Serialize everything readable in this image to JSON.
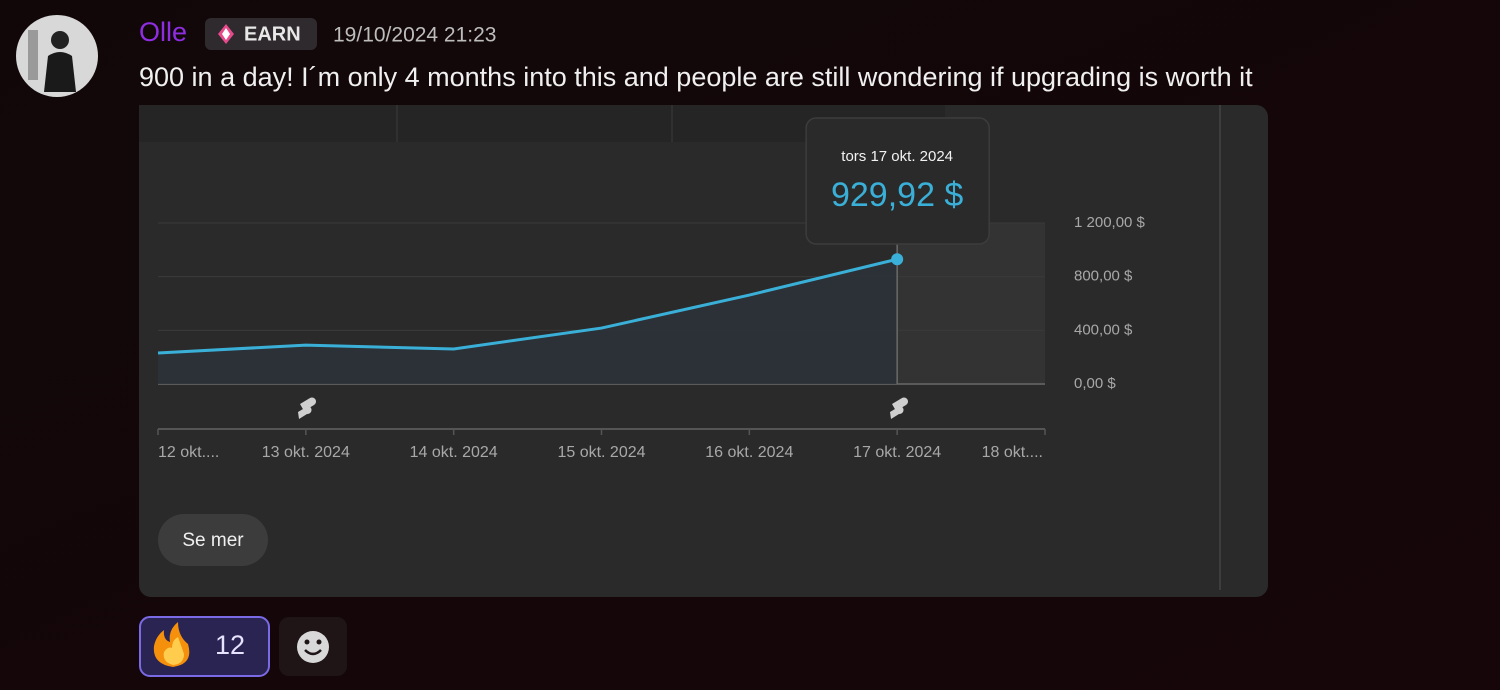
{
  "message": {
    "author": "Olle",
    "badge": "EARN",
    "timestamp": "19/10/2024 21:23",
    "text": "900 in a day! I´m only 4 months into this and people are still wondering if upgrading is worth it",
    "button": "Se mer",
    "reactions": [
      {
        "count": 12
      }
    ]
  },
  "chart_data": {
    "type": "line",
    "categories": [
      "12 okt....",
      "13 okt. 2024",
      "14 okt. 2024",
      "15 okt. 2024",
      "16 okt. 2024",
      "17 okt. 2024",
      "18 okt...."
    ],
    "series": [
      {
        "color": "#3ab0d8",
        "values": [
          231,
          290,
          261,
          417,
          663,
          929.92,
          null
        ],
        "value_labels": [
          null,
          null,
          null,
          null,
          null,
          "929,92 $",
          null
        ]
      }
    ],
    "annotation": "tors 17 okt. 2024",
    "ylim": [
      0,
      1200
    ],
    "yticks": [
      {
        "value": 0,
        "label": "0,00 $"
      },
      {
        "value": 400,
        "label": "400,00 $"
      },
      {
        "value": 800,
        "label": "800,00 $"
      },
      {
        "value": 1200,
        "label": "1 200,00 $"
      }
    ],
    "grid": true
  }
}
